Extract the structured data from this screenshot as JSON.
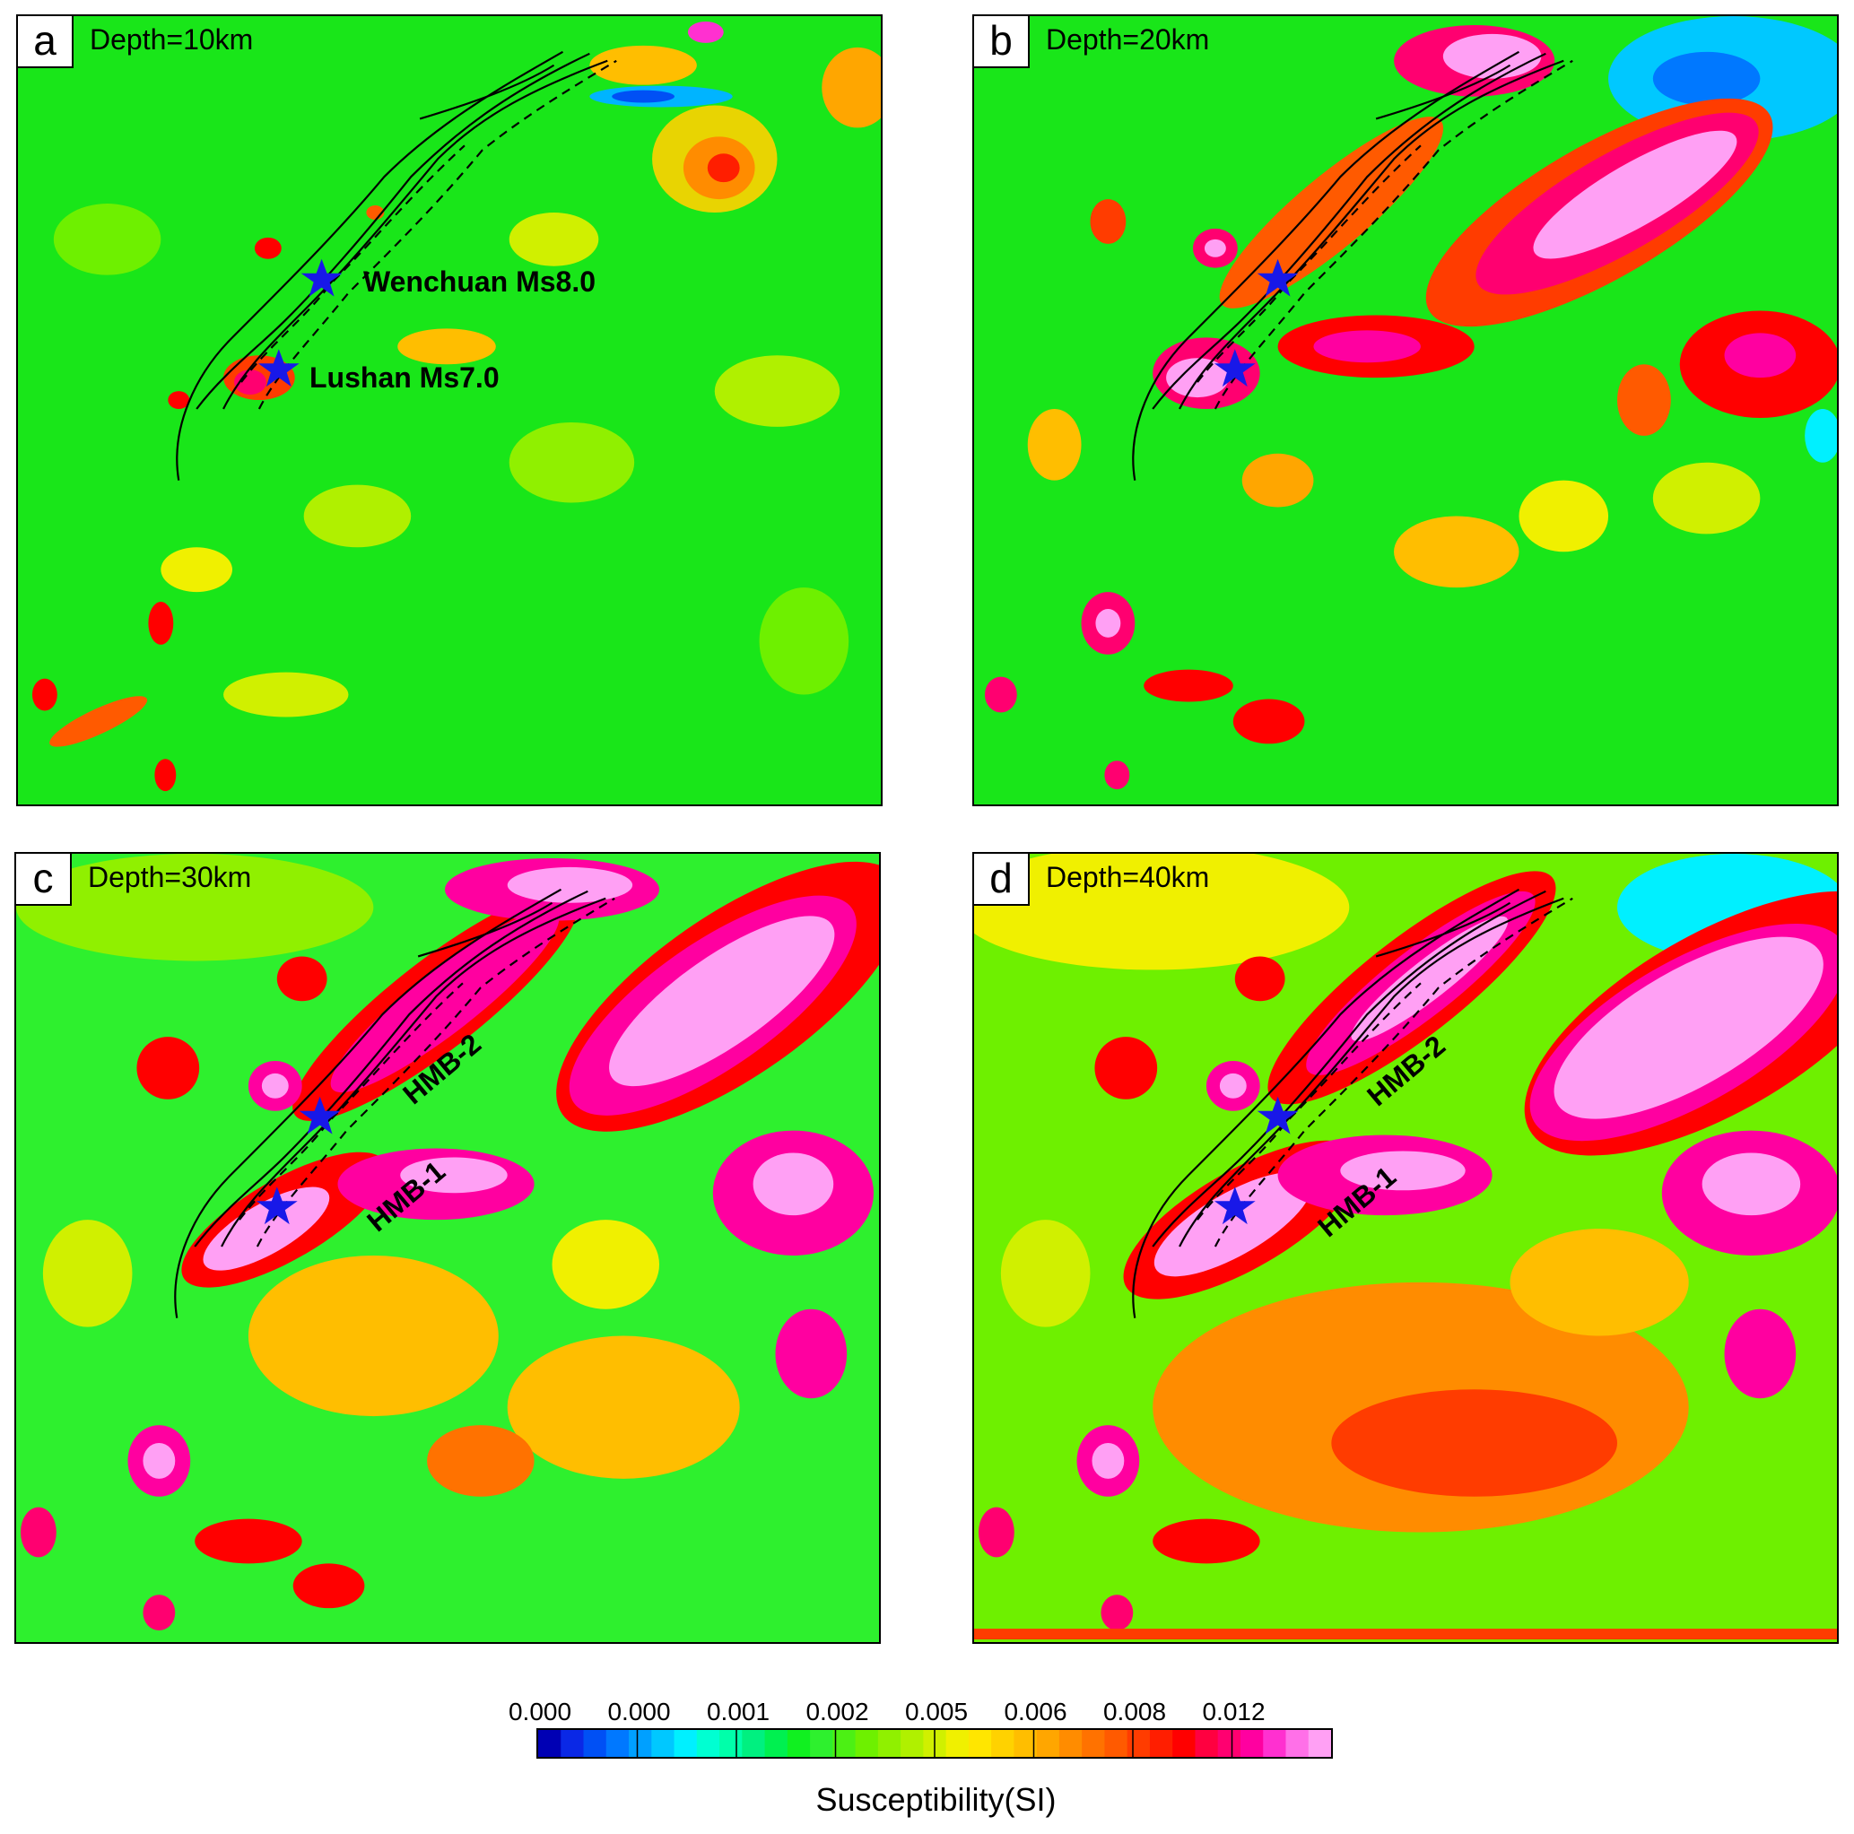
{
  "panels": [
    {
      "letter": "a",
      "depth": "Depth=10km"
    },
    {
      "letter": "b",
      "depth": "Depth=20km"
    },
    {
      "letter": "c",
      "depth": "Depth=30km"
    },
    {
      "letter": "d",
      "depth": "Depth=40km"
    }
  ],
  "earthquakes": {
    "wenchuan": "Wenchuan Ms8.0",
    "lushan": "Lushan Ms7.0"
  },
  "bodies": {
    "hmb1": "HMB-1",
    "hmb2": "HMB-2"
  },
  "colors": {
    "background": "#19e619",
    "star": "#1818e8",
    "fault": "#000000"
  },
  "chart_data": {
    "type": "heatmap",
    "title": "",
    "panels": [
      "Depth=10km",
      "Depth=20km",
      "Depth=30km",
      "Depth=40km"
    ],
    "colorbar": {
      "title": "Susceptibility(SI)",
      "tick_labels": [
        "0.000",
        "0.000",
        "0.001",
        "0.002",
        "0.005",
        "0.006",
        "0.008",
        "0.012"
      ],
      "colors": [
        "#0000b4",
        "#0a28e6",
        "#0050f5",
        "#0078ff",
        "#00a0ff",
        "#00c8ff",
        "#00f0ff",
        "#00ffd2",
        "#00ffaa",
        "#00f080",
        "#00f050",
        "#10f020",
        "#2ef02e",
        "#4cf014",
        "#6ef000",
        "#90f000",
        "#b0f000",
        "#d0f000",
        "#f0f000",
        "#ffe600",
        "#ffd200",
        "#ffbe00",
        "#ffa600",
        "#ff8c00",
        "#ff7200",
        "#ff5a00",
        "#ff3c00",
        "#ff1e00",
        "#ff0000",
        "#ff0040",
        "#ff0070",
        "#ff00a0",
        "#ff30d0",
        "#ff70e8",
        "#ffa0f4"
      ]
    },
    "annotations": [
      "Wenchuan Ms8.0",
      "Lushan Ms7.0",
      "HMB-1",
      "HMB-2"
    ]
  }
}
